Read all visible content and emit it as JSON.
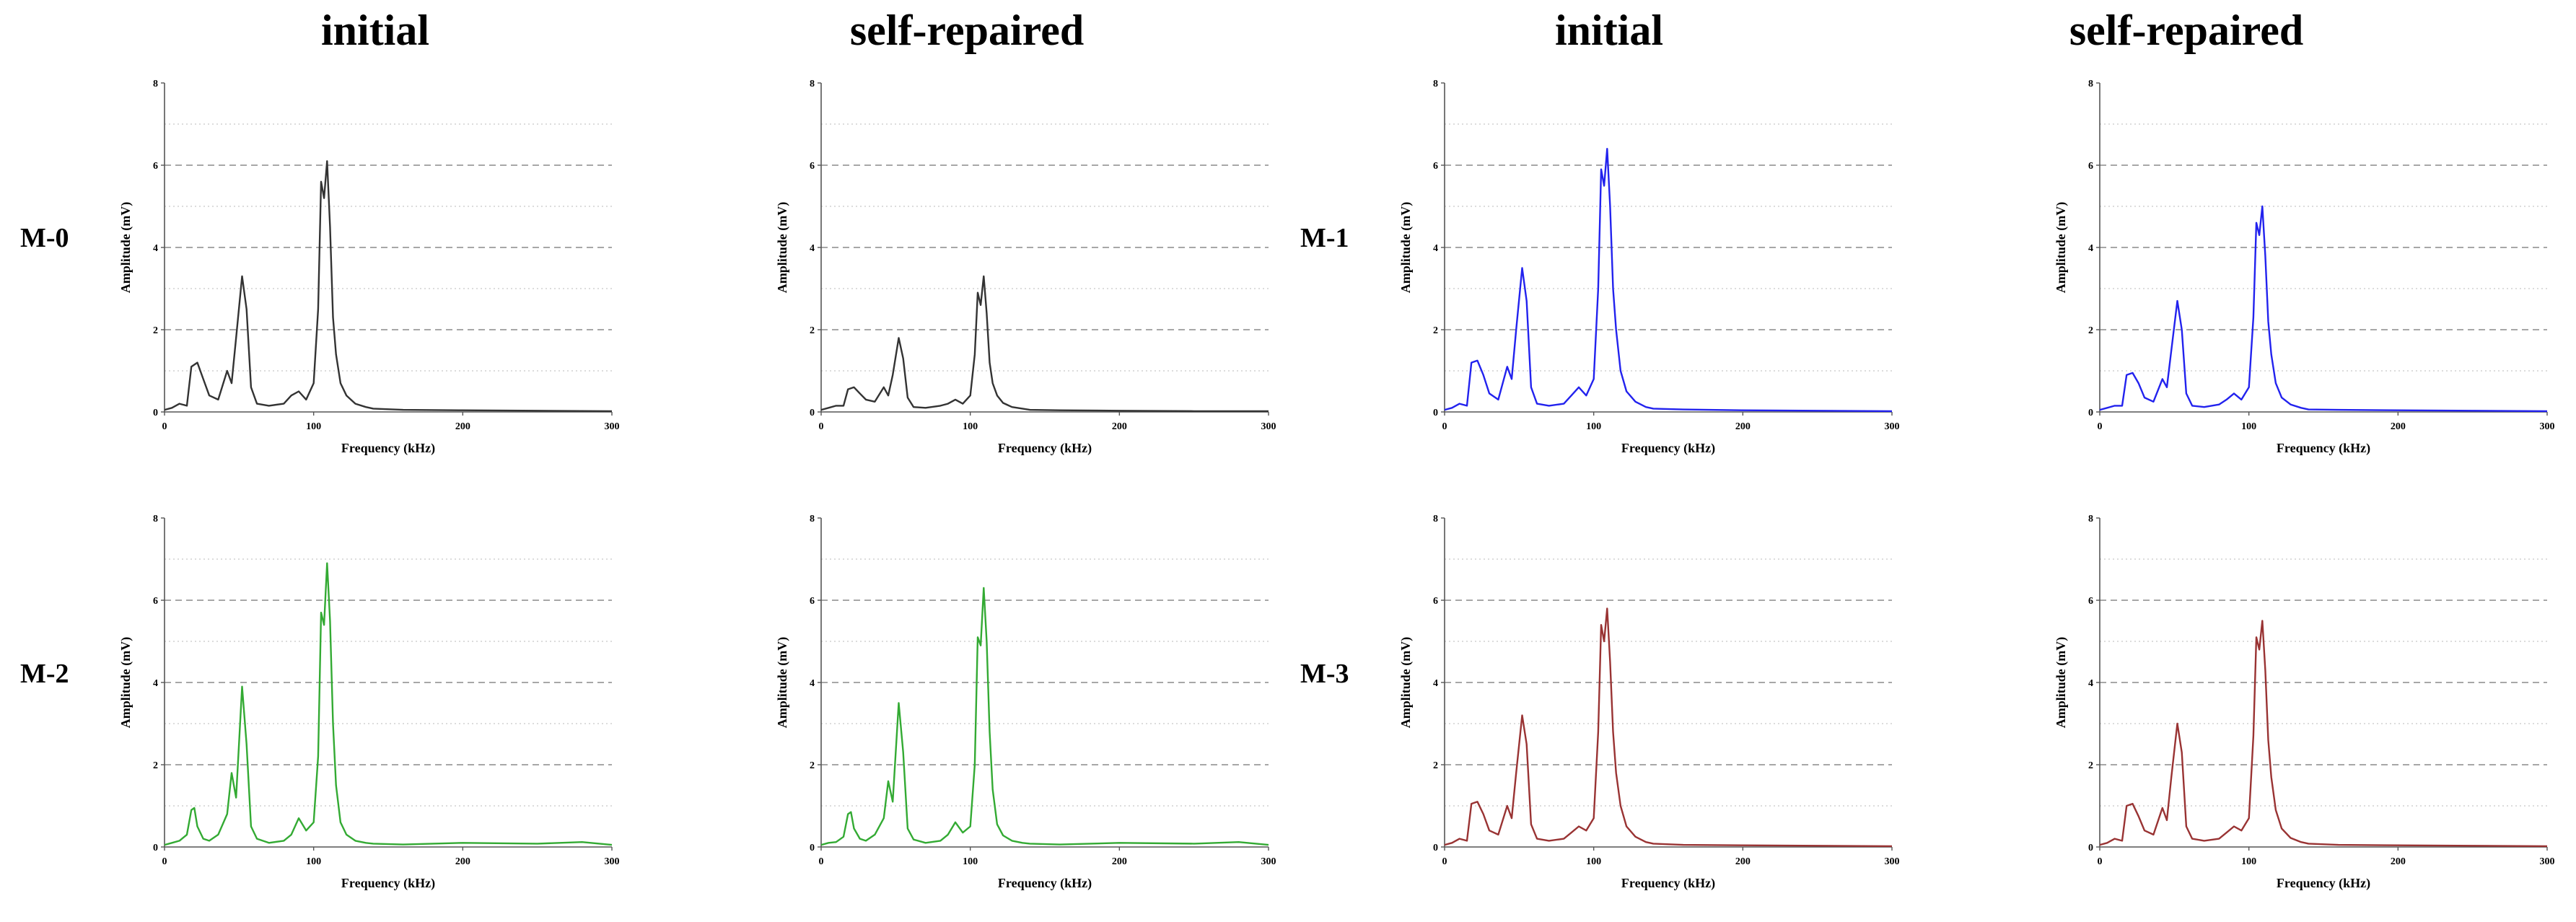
{
  "column_titles": [
    "initial",
    "self-repaired",
    "initial",
    "self-repaired"
  ],
  "row_labels": [
    "M-0",
    "M-1",
    "M-2",
    "M-3"
  ],
  "chart_data": [
    {
      "id": "m0-initial",
      "type": "line",
      "sample": "M-0",
      "condition": "initial",
      "color": "#333333",
      "xlabel": "Frequency (kHz)",
      "ylabel": "Amplitude (mV)",
      "xlim": [
        0,
        300
      ],
      "ylim": [
        0,
        8
      ],
      "xticks": [
        "0",
        "100",
        "200",
        "300"
      ],
      "yticks": [
        "0",
        "2",
        "4",
        "6",
        "8"
      ],
      "x": [
        0,
        5,
        10,
        15,
        18,
        22,
        26,
        30,
        36,
        42,
        45,
        48,
        52,
        55,
        58,
        62,
        70,
        80,
        85,
        90,
        95,
        100,
        103,
        105,
        107,
        109,
        111,
        113,
        115,
        118,
        122,
        128,
        135,
        140,
        160,
        200,
        250,
        300
      ],
      "y": [
        0.05,
        0.1,
        0.2,
        0.15,
        1.1,
        1.2,
        0.8,
        0.4,
        0.3,
        1.0,
        0.7,
        1.8,
        3.3,
        2.5,
        0.6,
        0.2,
        0.15,
        0.2,
        0.4,
        0.5,
        0.3,
        0.7,
        2.5,
        5.6,
        5.2,
        6.1,
        4.5,
        2.3,
        1.4,
        0.7,
        0.4,
        0.2,
        0.12,
        0.08,
        0.05,
        0.04,
        0.03,
        0.02
      ]
    },
    {
      "id": "m0-self-repaired",
      "type": "line",
      "sample": "M-0",
      "condition": "self-repaired",
      "color": "#333333",
      "xlabel": "Frequency (kHz)",
      "ylabel": "Amplitude (mV)",
      "xlim": [
        0,
        300
      ],
      "ylim": [
        0,
        8
      ],
      "xticks": [
        "0",
        "100",
        "200",
        "300"
      ],
      "yticks": [
        "0",
        "2",
        "4",
        "6",
        "8"
      ],
      "x": [
        0,
        5,
        10,
        15,
        18,
        22,
        26,
        30,
        36,
        42,
        45,
        48,
        52,
        55,
        58,
        62,
        70,
        80,
        85,
        90,
        95,
        100,
        103,
        105,
        107,
        109,
        111,
        113,
        115,
        118,
        122,
        128,
        135,
        140,
        160,
        200,
        250,
        300
      ],
      "y": [
        0.05,
        0.1,
        0.15,
        0.15,
        0.55,
        0.6,
        0.45,
        0.3,
        0.25,
        0.6,
        0.4,
        0.9,
        1.8,
        1.3,
        0.35,
        0.12,
        0.1,
        0.15,
        0.2,
        0.3,
        0.2,
        0.4,
        1.4,
        2.9,
        2.6,
        3.3,
        2.4,
        1.2,
        0.7,
        0.4,
        0.22,
        0.12,
        0.08,
        0.05,
        0.04,
        0.03,
        0.02,
        0.02
      ]
    },
    {
      "id": "m1-initial",
      "type": "line",
      "sample": "M-1",
      "condition": "initial",
      "color": "#2222ee",
      "xlabel": "Frequency (kHz)",
      "ylabel": "Amplitude (mV)",
      "xlim": [
        0,
        300
      ],
      "ylim": [
        0,
        8
      ],
      "xticks": [
        "0",
        "100",
        "200",
        "300"
      ],
      "yticks": [
        "0",
        "2",
        "4",
        "6",
        "8"
      ],
      "x": [
        0,
        5,
        10,
        15,
        18,
        22,
        26,
        30,
        36,
        42,
        45,
        48,
        52,
        55,
        58,
        62,
        70,
        80,
        85,
        90,
        95,
        100,
        103,
        105,
        107,
        109,
        111,
        113,
        115,
        118,
        122,
        128,
        135,
        140,
        160,
        200,
        250,
        300
      ],
      "y": [
        0.05,
        0.1,
        0.2,
        0.15,
        1.2,
        1.25,
        0.9,
        0.45,
        0.3,
        1.1,
        0.8,
        2.0,
        3.5,
        2.7,
        0.6,
        0.2,
        0.15,
        0.2,
        0.4,
        0.6,
        0.4,
        0.8,
        3.0,
        5.9,
        5.5,
        6.4,
        5.0,
        3.0,
        2.0,
        1.0,
        0.5,
        0.25,
        0.12,
        0.08,
        0.06,
        0.04,
        0.03,
        0.02
      ]
    },
    {
      "id": "m1-self-repaired",
      "type": "line",
      "sample": "M-1",
      "condition": "self-repaired",
      "color": "#2222ee",
      "xlabel": "Frequency (kHz)",
      "ylabel": "Amplitude (mV)",
      "xlim": [
        0,
        300
      ],
      "ylim": [
        0,
        8
      ],
      "xticks": [
        "0",
        "100",
        "200",
        "300"
      ],
      "yticks": [
        "0",
        "2",
        "4",
        "6",
        "8"
      ],
      "x": [
        0,
        5,
        10,
        15,
        18,
        22,
        26,
        30,
        36,
        42,
        45,
        48,
        52,
        55,
        58,
        62,
        70,
        80,
        85,
        90,
        95,
        100,
        103,
        105,
        107,
        109,
        111,
        113,
        115,
        118,
        122,
        128,
        135,
        140,
        160,
        200,
        250,
        300
      ],
      "y": [
        0.05,
        0.1,
        0.15,
        0.15,
        0.9,
        0.95,
        0.7,
        0.35,
        0.25,
        0.8,
        0.6,
        1.5,
        2.7,
        2.0,
        0.45,
        0.15,
        0.12,
        0.18,
        0.3,
        0.45,
        0.3,
        0.6,
        2.3,
        4.6,
        4.3,
        5.0,
        3.8,
        2.2,
        1.4,
        0.7,
        0.35,
        0.18,
        0.1,
        0.06,
        0.05,
        0.04,
        0.03,
        0.02
      ]
    },
    {
      "id": "m2-initial",
      "type": "line",
      "sample": "M-2",
      "condition": "initial",
      "color": "#33aa33",
      "xlabel": "Frequency (kHz)",
      "ylabel": "Amplitude (mV)",
      "xlim": [
        0,
        300
      ],
      "ylim": [
        0,
        8
      ],
      "xticks": [
        "0",
        "100",
        "200",
        "300"
      ],
      "yticks": [
        "0",
        "2",
        "4",
        "6",
        "8"
      ],
      "x": [
        0,
        5,
        10,
        15,
        18,
        20,
        22,
        26,
        30,
        36,
        42,
        45,
        48,
        52,
        55,
        58,
        62,
        70,
        80,
        85,
        90,
        95,
        100,
        103,
        105,
        107,
        109,
        111,
        113,
        115,
        118,
        122,
        128,
        135,
        140,
        160,
        200,
        250,
        280,
        300
      ],
      "y": [
        0.05,
        0.1,
        0.15,
        0.3,
        0.9,
        0.95,
        0.5,
        0.2,
        0.15,
        0.3,
        0.8,
        1.8,
        1.2,
        3.9,
        2.5,
        0.5,
        0.2,
        0.1,
        0.15,
        0.3,
        0.7,
        0.4,
        0.6,
        2.2,
        5.7,
        5.4,
        6.9,
        5.5,
        3.0,
        1.5,
        0.6,
        0.3,
        0.15,
        0.1,
        0.08,
        0.06,
        0.1,
        0.08,
        0.12,
        0.05
      ]
    },
    {
      "id": "m2-self-repaired",
      "type": "line",
      "sample": "M-2",
      "condition": "self-repaired",
      "color": "#33aa33",
      "xlabel": "Frequency (kHz)",
      "ylabel": "Amplitude (mV)",
      "xlim": [
        0,
        300
      ],
      "ylim": [
        0,
        8
      ],
      "xticks": [
        "0",
        "100",
        "200",
        "300"
      ],
      "yticks": [
        "0",
        "2",
        "4",
        "6",
        "8"
      ],
      "x": [
        0,
        5,
        10,
        15,
        18,
        20,
        22,
        26,
        30,
        36,
        42,
        45,
        48,
        52,
        55,
        58,
        62,
        70,
        80,
        85,
        90,
        95,
        100,
        103,
        105,
        107,
        109,
        111,
        113,
        115,
        118,
        122,
        128,
        135,
        140,
        160,
        200,
        250,
        280,
        300
      ],
      "y": [
        0.05,
        0.1,
        0.12,
        0.25,
        0.8,
        0.85,
        0.45,
        0.2,
        0.15,
        0.3,
        0.7,
        1.6,
        1.1,
        3.5,
        2.3,
        0.45,
        0.18,
        0.1,
        0.15,
        0.3,
        0.6,
        0.35,
        0.5,
        2.0,
        5.1,
        4.9,
        6.3,
        5.0,
        2.8,
        1.4,
        0.55,
        0.28,
        0.15,
        0.1,
        0.08,
        0.06,
        0.1,
        0.08,
        0.12,
        0.05
      ]
    },
    {
      "id": "m3-initial",
      "type": "line",
      "sample": "M-3",
      "condition": "initial",
      "color": "#993333",
      "xlabel": "Frequency (kHz)",
      "ylabel": "Amplitude (mV)",
      "xlim": [
        0,
        300
      ],
      "ylim": [
        0,
        8
      ],
      "xticks": [
        "0",
        "100",
        "200",
        "300"
      ],
      "yticks": [
        "0",
        "2",
        "4",
        "6",
        "8"
      ],
      "x": [
        0,
        5,
        10,
        15,
        18,
        22,
        26,
        30,
        36,
        42,
        45,
        48,
        52,
        55,
        58,
        62,
        70,
        80,
        85,
        90,
        95,
        100,
        103,
        105,
        107,
        109,
        111,
        113,
        115,
        118,
        122,
        128,
        135,
        140,
        160,
        200,
        250,
        300
      ],
      "y": [
        0.05,
        0.1,
        0.2,
        0.15,
        1.05,
        1.1,
        0.8,
        0.4,
        0.3,
        1.0,
        0.7,
        1.8,
        3.2,
        2.5,
        0.55,
        0.2,
        0.15,
        0.2,
        0.35,
        0.5,
        0.4,
        0.7,
        2.8,
        5.4,
        5.0,
        5.8,
        4.5,
        2.8,
        1.8,
        1.0,
        0.5,
        0.25,
        0.12,
        0.08,
        0.05,
        0.04,
        0.03,
        0.02
      ]
    },
    {
      "id": "m3-self-repaired",
      "type": "line",
      "sample": "M-3",
      "condition": "self-repaired",
      "color": "#993333",
      "xlabel": "Frequency (kHz)",
      "ylabel": "Amplitude (mV)",
      "xlim": [
        0,
        300
      ],
      "ylim": [
        0,
        8
      ],
      "xticks": [
        "0",
        "100",
        "200",
        "300"
      ],
      "yticks": [
        "0",
        "2",
        "4",
        "6",
        "8"
      ],
      "x": [
        0,
        5,
        10,
        15,
        18,
        22,
        26,
        30,
        36,
        42,
        45,
        48,
        52,
        55,
        58,
        62,
        70,
        80,
        85,
        90,
        95,
        100,
        103,
        105,
        107,
        109,
        111,
        113,
        115,
        118,
        122,
        128,
        135,
        140,
        160,
        200,
        250,
        300
      ],
      "y": [
        0.05,
        0.1,
        0.2,
        0.15,
        1.0,
        1.05,
        0.75,
        0.4,
        0.3,
        0.95,
        0.65,
        1.7,
        3.0,
        2.3,
        0.5,
        0.2,
        0.15,
        0.2,
        0.35,
        0.5,
        0.4,
        0.7,
        2.7,
        5.1,
        4.8,
        5.5,
        4.3,
        2.6,
        1.7,
        0.9,
        0.45,
        0.22,
        0.12,
        0.08,
        0.05,
        0.04,
        0.03,
        0.02
      ]
    }
  ]
}
